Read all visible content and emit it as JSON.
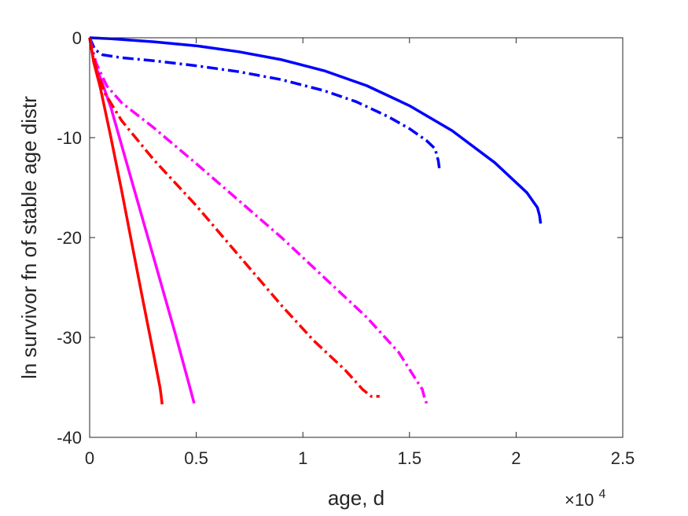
{
  "chart_data": {
    "type": "line",
    "title": "",
    "xlabel": "age, d",
    "ylabel": "ln survivor fn of stable age distr",
    "x_exponent_label": {
      "base": "×10",
      "exp": "4"
    },
    "xlim": [
      0,
      25000
    ],
    "ylim": [
      -40,
      0
    ],
    "xticks": [
      0,
      5000,
      10000,
      15000,
      20000,
      25000
    ],
    "xtick_labels": [
      "0",
      "0.5",
      "1",
      "1.5",
      "2",
      "2.5"
    ],
    "yticks": [
      -40,
      -30,
      -20,
      -10,
      0
    ],
    "ytick_labels": [
      "-40",
      "-30",
      "-20",
      "-10",
      "0"
    ],
    "grid": false,
    "series": [
      {
        "color": "#0000ff",
        "style": "solid",
        "x": [
          0,
          1000,
          3000,
          5000,
          7000,
          9000,
          11000,
          13000,
          15000,
          17000,
          19000,
          20500,
          21000,
          21100,
          21150
        ],
        "y": [
          0,
          -0.1,
          -0.4,
          -0.8,
          -1.4,
          -2.2,
          -3.3,
          -4.8,
          -6.8,
          -9.3,
          -12.5,
          -15.5,
          -17.0,
          -17.8,
          -18.6
        ]
      },
      {
        "color": "#0000ff",
        "style": "dashdot",
        "x": [
          0,
          250,
          600,
          1500,
          3000,
          5000,
          7000,
          9000,
          11000,
          12500,
          14000,
          15000,
          15800,
          16200,
          16350,
          16400
        ],
        "y": [
          0,
          -1.2,
          -1.7,
          -2.0,
          -2.3,
          -2.8,
          -3.4,
          -4.2,
          -5.3,
          -6.4,
          -7.9,
          -9.1,
          -10.3,
          -11.1,
          -12.3,
          -13.1
        ]
      },
      {
        "color": "#ff00ff",
        "style": "solid",
        "x": [
          0,
          200,
          500,
          1000,
          2000,
          3000,
          4000,
          4700,
          4900
        ],
        "y": [
          0,
          -2.5,
          -4.0,
          -7.0,
          -14.5,
          -22.0,
          -29.5,
          -35.0,
          -36.6
        ]
      },
      {
        "color": "#ff00ff",
        "style": "dashdot",
        "x": [
          0,
          300,
          800,
          1500,
          3000,
          5000,
          7000,
          9000,
          11000,
          13000,
          14500,
          15300,
          15600,
          15700,
          15800
        ],
        "y": [
          0,
          -2.5,
          -4.8,
          -6.5,
          -9.0,
          -12.6,
          -16.3,
          -20.0,
          -24.0,
          -28.0,
          -31.5,
          -34.2,
          -35.2,
          -36.0,
          -36.6
        ]
      },
      {
        "color": "#ff0000",
        "style": "solid",
        "x": [
          0,
          200,
          500,
          1000,
          1500,
          2000,
          2500,
          3000,
          3300,
          3350,
          3400
        ],
        "y": [
          0,
          -2.5,
          -5.0,
          -10.0,
          -15.3,
          -20.8,
          -26.3,
          -31.7,
          -35.0,
          -35.8,
          -36.7
        ]
      },
      {
        "color": "#ff0000",
        "style": "dashdot",
        "x": [
          0,
          300,
          700,
          1500,
          3000,
          5000,
          7000,
          9000,
          10500,
          12000,
          12800,
          13200,
          13600
        ],
        "y": [
          0,
          -3.0,
          -5.5,
          -8.3,
          -12.2,
          -16.8,
          -21.8,
          -26.8,
          -30.3,
          -33.3,
          -35.2,
          -35.9,
          -35.9
        ]
      }
    ]
  }
}
